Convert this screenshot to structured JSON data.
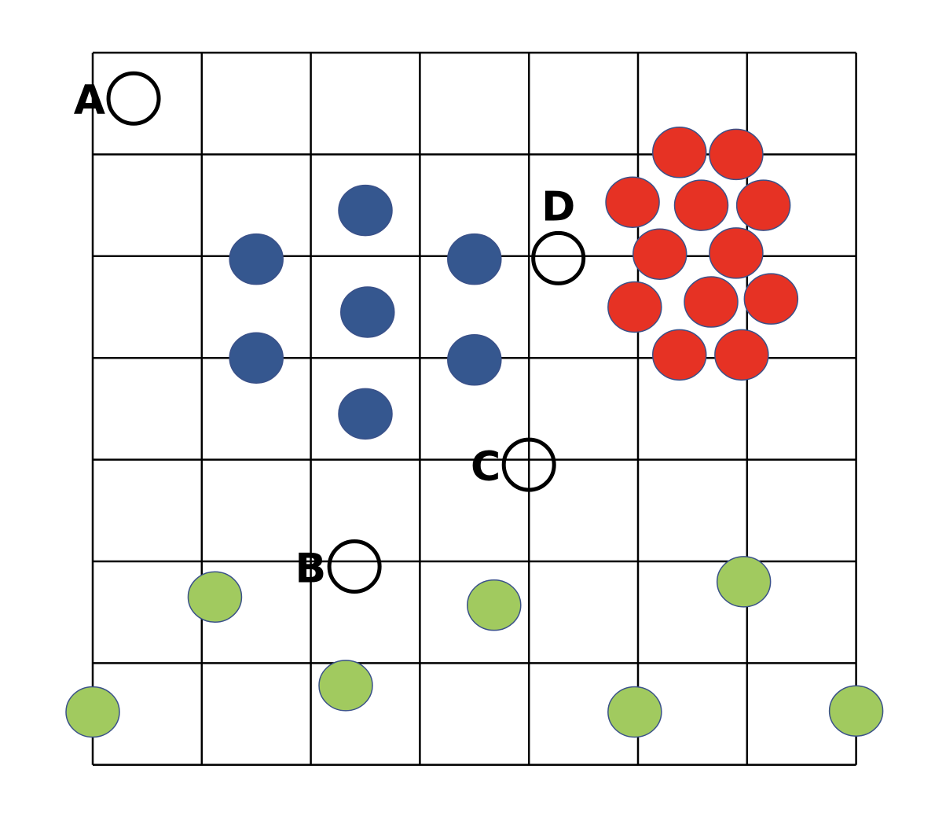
{
  "grid": {
    "columns": 7,
    "rows": 7,
    "line_color": "#000000"
  },
  "colors": {
    "blue": "#35578f",
    "red": "#e63224",
    "green": "#a1ca5f",
    "point_outline": "#3a5189"
  },
  "query_points": [
    {
      "label": "A",
      "col": 0.375,
      "row": 0.45
    },
    {
      "label": "B",
      "col": 2.4,
      "row": 5.05
    },
    {
      "label": "C",
      "col": 4.0,
      "row": 4.05
    },
    {
      "label": "D",
      "col": 4.27,
      "row": 2.02
    }
  ],
  "blue_points": [
    {
      "col": 2.5,
      "row": 1.55
    },
    {
      "col": 1.5,
      "row": 2.03
    },
    {
      "col": 3.5,
      "row": 2.03
    },
    {
      "col": 2.52,
      "row": 2.55
    },
    {
      "col": 1.5,
      "row": 3.0
    },
    {
      "col": 3.5,
      "row": 3.02
    },
    {
      "col": 2.5,
      "row": 3.55
    }
  ],
  "red_points": [
    {
      "col": 5.38,
      "row": 0.98
    },
    {
      "col": 5.9,
      "row": 1.0
    },
    {
      "col": 4.95,
      "row": 1.47
    },
    {
      "col": 5.58,
      "row": 1.5
    },
    {
      "col": 6.15,
      "row": 1.5
    },
    {
      "col": 5.2,
      "row": 1.98
    },
    {
      "col": 5.9,
      "row": 1.97
    },
    {
      "col": 4.97,
      "row": 2.5
    },
    {
      "col": 5.67,
      "row": 2.45
    },
    {
      "col": 6.22,
      "row": 2.42
    },
    {
      "col": 5.38,
      "row": 2.97
    },
    {
      "col": 5.95,
      "row": 2.97
    }
  ],
  "green_points": [
    {
      "col": 1.12,
      "row": 5.35
    },
    {
      "col": 2.32,
      "row": 6.22
    },
    {
      "col": 3.68,
      "row": 5.43
    },
    {
      "col": 5.97,
      "row": 5.2
    },
    {
      "col": 0.0,
      "row": 6.48
    },
    {
      "col": 4.97,
      "row": 6.48
    },
    {
      "col": 7.0,
      "row": 6.47
    }
  ]
}
